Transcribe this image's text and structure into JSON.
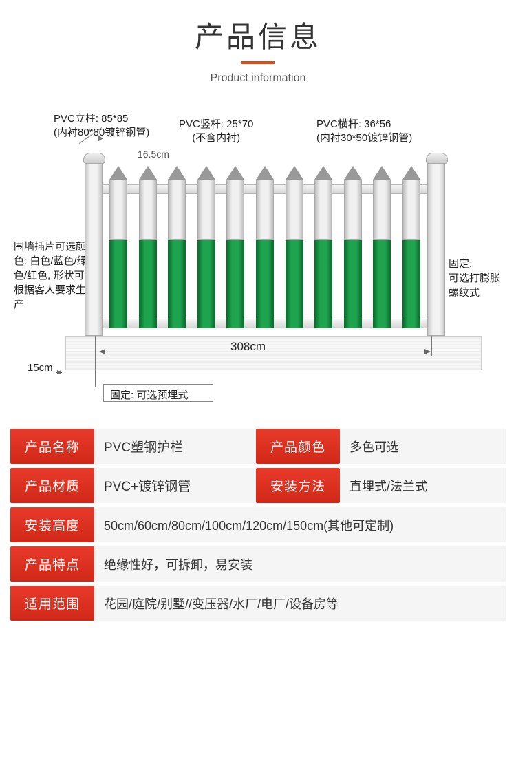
{
  "header": {
    "title_main": "产品信息",
    "title_sub": "Product information",
    "underline_color": "#e8450f"
  },
  "diagram": {
    "post_label": "PVC立柱: 85*85",
    "post_sub": "(内衬80*80镀锌钢管)",
    "vertical_label": "PVC竖杆: 25*70",
    "vertical_sub": "(不含内衬)",
    "horizontal_label": "PVC横杆: 36*56",
    "horizontal_sub": "(内衬30*50镀锌钢管)",
    "gap_label": "16.5cm",
    "colors_note": "围墙插片可选颜色: 白色/蓝色/绿色/红色, 形状可根据客人要求生产",
    "fix_right": "固定:\n可选打膨胀螺纹式",
    "depth_label": "15cm",
    "fix_bottom": "固定: 可选预埋式",
    "width_label": "308cm",
    "picket_count": 11,
    "picket_green": "#1ea34e",
    "picket_grey": "#e0e0e0",
    "post_color": "#e8e8e8"
  },
  "specs": {
    "rows": [
      {
        "cells": [
          {
            "label": "产品名称",
            "value": "PVC塑钢护栏",
            "narrow": true
          },
          {
            "label": "产品颜色",
            "value": "多色可选"
          }
        ]
      },
      {
        "cells": [
          {
            "label": "产品材质",
            "value": "PVC+镀锌钢管",
            "narrow": true
          },
          {
            "label": "安装方法",
            "value": "直埋式/法兰式"
          }
        ]
      },
      {
        "cells": [
          {
            "label": "安装高度",
            "value": "50cm/60cm/80cm/100cm/120cm/150cm(其他可定制)"
          }
        ]
      },
      {
        "cells": [
          {
            "label": "产品特点",
            "value": "绝缘性好，可拆卸，易安装"
          }
        ]
      },
      {
        "cells": [
          {
            "label": "适用范围",
            "value": "花园/庭院/别墅//变压器/水厂/电厂/设备房等"
          }
        ]
      }
    ],
    "label_bg": "#e03020",
    "label_color": "#ffffff",
    "value_bg": "#f5f5f5"
  }
}
